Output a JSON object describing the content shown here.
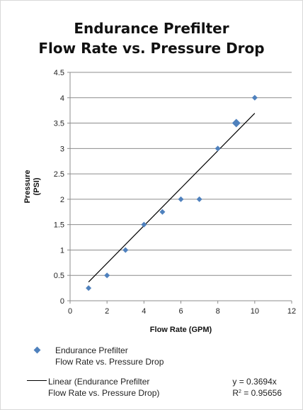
{
  "chart_data": {
    "type": "scatter",
    "title_line1": "Endurance Prefilter",
    "title_line2": "Flow Rate vs. Pressure Drop",
    "xlabel": "Flow Rate (GPM)",
    "ylabel_line1": "Pressure",
    "ylabel_line2": "(PSI)",
    "xlim": [
      0,
      12
    ],
    "ylim": [
      0,
      4.5
    ],
    "x_ticks": [
      "0",
      "2",
      "4",
      "6",
      "8",
      "10",
      "12"
    ],
    "y_ticks": [
      "0",
      "0.5",
      "1",
      "1.5",
      "2",
      "2.5",
      "3",
      "3.5",
      "4",
      "4.5"
    ],
    "grid": "horizontal",
    "series": [
      {
        "name_line1": "Endurance Prefilter",
        "name_line2": "Flow Rate vs. Pressure Drop",
        "color": "#4f81bd",
        "points": [
          {
            "x": 1,
            "y": 0.25
          },
          {
            "x": 2,
            "y": 0.5
          },
          {
            "x": 3,
            "y": 1
          },
          {
            "x": 4,
            "y": 1.5
          },
          {
            "x": 5,
            "y": 1.75
          },
          {
            "x": 6,
            "y": 2
          },
          {
            "x": 7,
            "y": 2
          },
          {
            "x": 8,
            "y": 3
          },
          {
            "x": 9,
            "y": 3.5
          },
          {
            "x": 10,
            "y": 4
          }
        ],
        "highlighted_point_index": 8
      }
    ],
    "trendline": {
      "type": "linear",
      "slope": 0.3694,
      "x_range": [
        1,
        10
      ],
      "label_line1": "Linear (Endurance Prefilter",
      "label_line2": "Flow Rate vs. Pressure Drop)",
      "equation": "y = 0.3694x",
      "r_squared_prefix": "R",
      "r_squared_exp": "2",
      "r_squared_value": " = 0.95656",
      "color": "#000000"
    }
  }
}
